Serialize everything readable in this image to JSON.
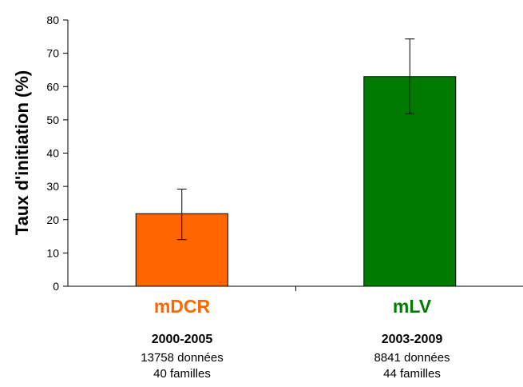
{
  "chart_data": {
    "type": "bar",
    "title": "",
    "xlabel": "",
    "ylabel": "Taux d'initiation (%)",
    "ylim": [
      0,
      80
    ],
    "yticks": [
      0,
      10,
      20,
      30,
      40,
      50,
      60,
      70,
      80
    ],
    "grid": false,
    "categories": [
      "mDCR",
      "mLV"
    ],
    "values": [
      21.8,
      63.0
    ],
    "error_low": [
      14.0,
      51.8
    ],
    "error_high": [
      29.2,
      74.3
    ],
    "colors": [
      "#ff6600",
      "#007a00"
    ]
  },
  "groups": [
    {
      "period": "2000-2005",
      "data_count": "13758 données",
      "families": "40 familles"
    },
    {
      "period": "2003-2009",
      "data_count": "8841 données",
      "families": "44 familles"
    }
  ]
}
